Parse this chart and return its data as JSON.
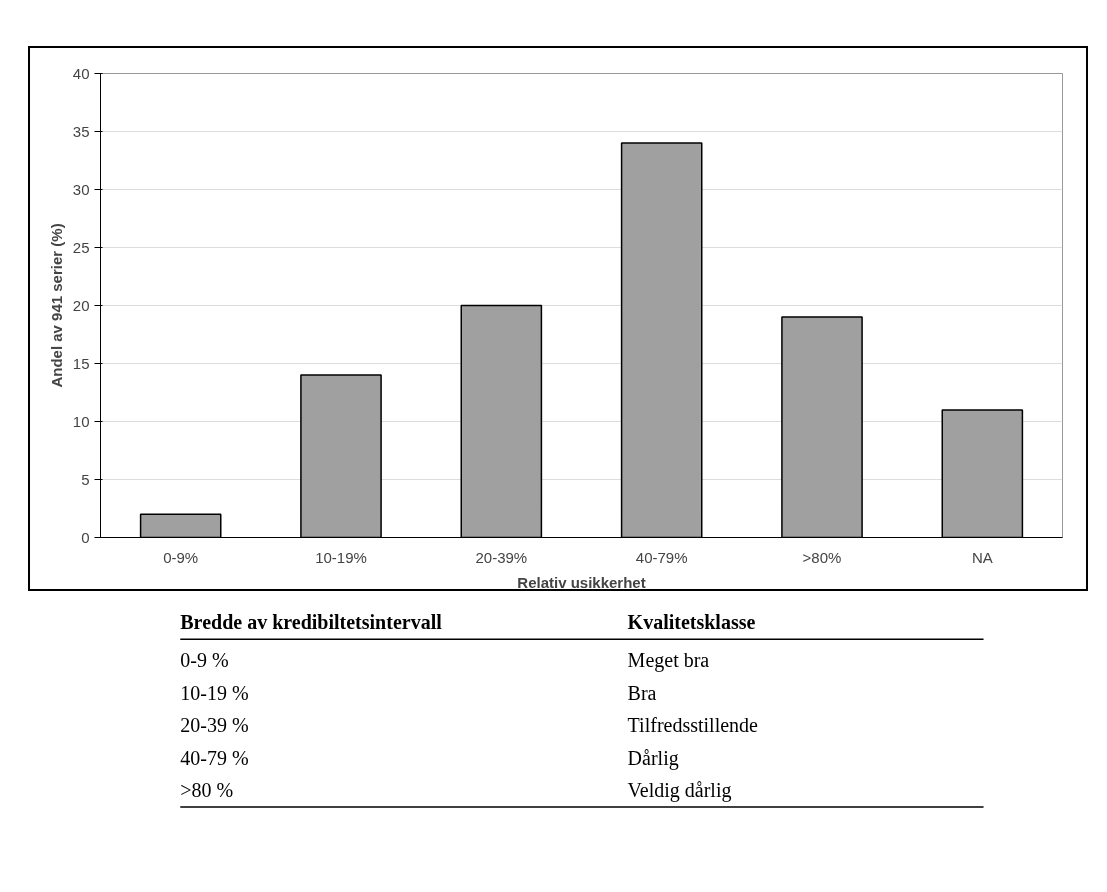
{
  "chart_data": [
    {
      "type": "bar",
      "xlabel": "Relativ usikkerhet",
      "ylabel": "Andel av 941 serier (%)",
      "categories": [
        "0-9%",
        "10-19%",
        "20-39%",
        "40-79%",
        ">80%",
        "NA"
      ],
      "values": [
        2,
        14,
        20,
        34,
        19,
        11
      ],
      "color": "#a0a0a0",
      "ylim": [
        0,
        40
      ],
      "yticks": [
        0,
        5,
        10,
        15,
        20,
        25,
        30,
        35,
        40
      ],
      "grid": "y"
    },
    {
      "type": "other",
      "annotations": [
        "Bredde av kredibiltetsintervall",
        "Kvalitetsklasse",
        "0-9 %",
        "Meget bra",
        "10-19 %",
        "Bra",
        "20-39 %",
        "Tilfredsstillende",
        "40-79 %",
        "Dårlig",
        ">80 %",
        "Veldig dårlig"
      ]
    }
  ]
}
